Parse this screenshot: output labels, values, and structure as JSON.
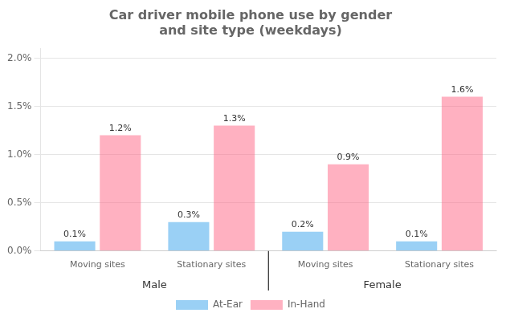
{
  "chart_data": {
    "type": "bar",
    "title": "Car driver mobile phone use by gender\nand site type (weekdays)",
    "categories": [
      "Moving sites",
      "Stationary sites",
      "Moving sites",
      "Stationary sites"
    ],
    "annotations": [
      "Male",
      "Female"
    ],
    "series": [
      {
        "name": "At-Ear",
        "values": [
          0.001,
          0.003,
          0.002,
          0.001
        ],
        "value_labels": [
          "0.1%",
          "0.3%",
          "0.2%",
          "0.1%"
        ]
      },
      {
        "name": "In-Hand",
        "values": [
          0.012,
          0.013,
          0.009,
          0.016
        ],
        "value_labels": [
          "1.2%",
          "1.3%",
          "0.9%",
          "1.6%"
        ]
      }
    ],
    "ylim": [
      0,
      0.021
    ],
    "yticks": [
      {
        "value": 0.0,
        "label": "0.0%"
      },
      {
        "value": 0.005,
        "label": "0.5%"
      },
      {
        "value": 0.01,
        "label": "1.0%"
      },
      {
        "value": 0.015,
        "label": "1.5%"
      },
      {
        "value": 0.02,
        "label": "2.0%"
      }
    ],
    "grid": true,
    "legend": "bottom",
    "data_labels": true
  }
}
